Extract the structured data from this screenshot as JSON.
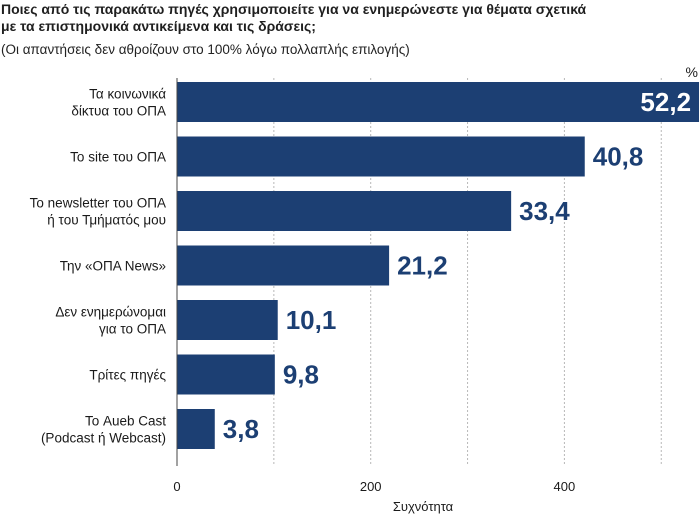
{
  "title_lines": [
    "Ποιες από τις παρακάτω πηγές χρησιμοποιείτε για να ενημερώνεστε για θέματα σχετικά",
    "με τα επιστημονικά αντικείμενα και τις δράσεις;"
  ],
  "subtitle": "(Οι απαντήσεις δεν αθροίζουν στο 100% λόγω πολλαπλής επιλογής)",
  "chart_data": {
    "type": "bar",
    "orientation": "horizontal",
    "categories": [
      [
        "Τα κοινωνικά",
        "δίκτυα του ΟΠΑ"
      ],
      [
        "Το site του ΟΠΑ"
      ],
      [
        "Το newsletter του ΟΠΑ",
        "ή του Τμήματός μου"
      ],
      [
        "Την «ΟΠΑ News»"
      ],
      [
        "Δεν ενημερώνομαι",
        "για το ΟΠΑ"
      ],
      [
        "Τρίτες πηγές"
      ],
      [
        "Το Aueb Cast",
        "(Podcast ή Webcast)"
      ]
    ],
    "values": [
      52.2,
      40.8,
      33.4,
      21.2,
      10.1,
      9.8,
      3.8
    ],
    "value_labels": [
      "52,2",
      "40,8",
      "33,4",
      "21,2",
      "10,1",
      "9,8",
      "3,8"
    ],
    "bar_counts": [
      539,
      421,
      345,
      219,
      104,
      101,
      39
    ],
    "xlabel": "Συχνότητα",
    "xticks": [
      0,
      200,
      400
    ],
    "xlim": [
      0,
      540
    ],
    "unit_label": "%",
    "grid": "vertical dashed",
    "bar_color": "#1c3f73"
  }
}
